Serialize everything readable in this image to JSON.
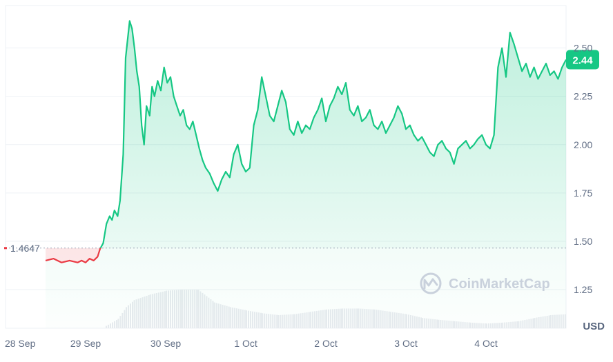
{
  "watermark": "CoinMarketCap",
  "currency_unit": "USD",
  "reference_price_label": "1.4647",
  "current_price_label": "2.44",
  "colors": {
    "up": "#16c784",
    "down": "#ea3943",
    "up_fill": "#16c784",
    "down_fill": "#ea3943",
    "grid": "#eef1f5",
    "volume": "#e8ebef",
    "watermark": "#c9d1dc"
  },
  "chart_data": {
    "type": "area",
    "x_tick_labels": [
      "28 Sep",
      "29 Sep",
      "30 Sep",
      "1 Oct",
      "2 Oct",
      "3 Oct",
      "4 Oct"
    ],
    "y_tick_labels": [
      "1.25",
      "1.50",
      "1.75",
      "2.00",
      "2.25",
      "2.50"
    ],
    "yaxis_side": "right",
    "ylim": [
      1.05,
      2.72
    ],
    "xlim": [
      0,
      7.0
    ],
    "reference_price": 1.4647,
    "current_price": 2.44,
    "grid": true,
    "price_series": {
      "x": [
        0.5,
        0.6,
        0.7,
        0.8,
        0.9,
        0.95,
        1.0,
        1.05,
        1.1,
        1.15,
        1.18,
        1.22,
        1.26,
        1.3,
        1.33,
        1.36,
        1.4,
        1.43,
        1.47,
        1.5,
        1.55,
        1.58,
        1.61,
        1.64,
        1.67,
        1.7,
        1.73,
        1.76,
        1.8,
        1.83,
        1.86,
        1.9,
        1.94,
        1.98,
        2.02,
        2.06,
        2.1,
        2.14,
        2.18,
        2.22,
        2.26,
        2.3,
        2.34,
        2.38,
        2.42,
        2.46,
        2.5,
        2.55,
        2.6,
        2.65,
        2.7,
        2.75,
        2.8,
        2.85,
        2.9,
        2.95,
        3.0,
        3.05,
        3.1,
        3.15,
        3.2,
        3.25,
        3.3,
        3.35,
        3.4,
        3.45,
        3.5,
        3.55,
        3.6,
        3.65,
        3.7,
        3.75,
        3.8,
        3.85,
        3.9,
        3.95,
        4.0,
        4.05,
        4.1,
        4.15,
        4.2,
        4.25,
        4.3,
        4.35,
        4.4,
        4.45,
        4.5,
        4.55,
        4.6,
        4.65,
        4.7,
        4.75,
        4.8,
        4.85,
        4.9,
        4.95,
        5.0,
        5.05,
        5.1,
        5.15,
        5.2,
        5.25,
        5.3,
        5.35,
        5.4,
        5.45,
        5.5,
        5.55,
        5.6,
        5.65,
        5.7,
        5.75,
        5.8,
        5.85,
        5.9,
        5.95,
        6.0,
        6.05,
        6.1,
        6.15,
        6.2,
        6.25,
        6.3,
        6.35,
        6.4,
        6.45,
        6.5,
        6.55,
        6.6,
        6.65,
        6.7,
        6.75,
        6.8,
        6.85,
        6.9,
        6.95,
        7.0
      ],
      "y": [
        1.4,
        1.41,
        1.39,
        1.4,
        1.39,
        1.4,
        1.39,
        1.41,
        1.4,
        1.42,
        1.46,
        1.49,
        1.59,
        1.63,
        1.61,
        1.66,
        1.63,
        1.71,
        1.95,
        2.45,
        2.64,
        2.6,
        2.5,
        2.38,
        2.3,
        2.1,
        2.0,
        2.2,
        2.15,
        2.3,
        2.25,
        2.33,
        2.28,
        2.4,
        2.32,
        2.35,
        2.25,
        2.2,
        2.15,
        2.18,
        2.1,
        2.08,
        2.12,
        2.05,
        1.98,
        1.92,
        1.88,
        1.85,
        1.8,
        1.76,
        1.82,
        1.86,
        1.83,
        1.95,
        2.0,
        1.9,
        1.86,
        1.88,
        2.1,
        2.18,
        2.35,
        2.25,
        2.15,
        2.12,
        2.2,
        2.28,
        2.22,
        2.08,
        2.05,
        2.12,
        2.06,
        2.1,
        2.08,
        2.14,
        2.18,
        2.24,
        2.12,
        2.2,
        2.24,
        2.3,
        2.26,
        2.32,
        2.18,
        2.15,
        2.2,
        2.12,
        2.14,
        2.18,
        2.1,
        2.08,
        2.12,
        2.06,
        2.1,
        2.14,
        2.2,
        2.16,
        2.08,
        2.1,
        2.05,
        2.02,
        2.04,
        2.0,
        1.96,
        1.94,
        2.0,
        2.02,
        1.98,
        1.96,
        1.9,
        1.98,
        2.0,
        2.02,
        1.98,
        2.0,
        2.03,
        2.05,
        2.0,
        1.98,
        2.05,
        2.4,
        2.5,
        2.35,
        2.58,
        2.52,
        2.45,
        2.38,
        2.42,
        2.35,
        2.4,
        2.34,
        2.38,
        2.42,
        2.36,
        2.38,
        2.34,
        2.4,
        2.44
      ]
    },
    "volume_series": {
      "x": [
        1.25,
        1.4,
        1.5,
        1.6,
        1.8,
        2.0,
        2.2,
        2.4,
        2.6,
        2.8,
        3.0,
        3.2,
        3.4,
        3.6,
        3.8,
        4.0,
        4.2,
        4.4,
        4.6,
        4.8,
        5.0,
        5.2,
        5.4,
        5.6,
        5.8,
        6.0,
        6.2,
        6.4,
        6.6,
        6.8,
        7.0
      ],
      "values": [
        0.05,
        0.2,
        0.45,
        0.6,
        0.72,
        0.8,
        0.82,
        0.82,
        0.55,
        0.45,
        0.38,
        0.32,
        0.28,
        0.3,
        0.35,
        0.4,
        0.42,
        0.42,
        0.4,
        0.35,
        0.3,
        0.22,
        0.18,
        0.15,
        0.12,
        0.1,
        0.12,
        0.15,
        0.22,
        0.28,
        0.3
      ]
    }
  }
}
